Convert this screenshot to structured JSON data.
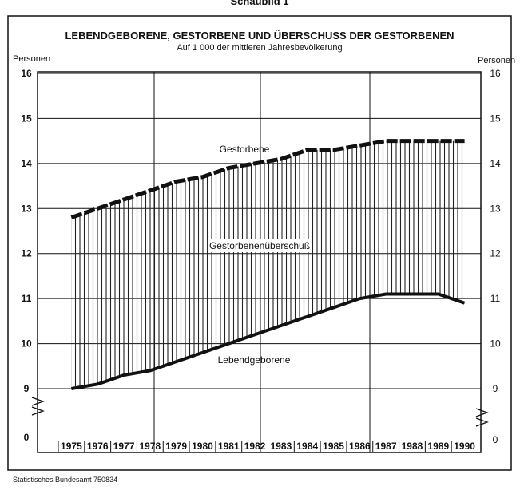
{
  "chart_data": {
    "type": "area-between",
    "header": "Schaubild 1",
    "title": "LEBENDGEBORENE, GESTORBENE UND ÜBERSCHUSS DER GESTORBENEN",
    "subtitle": "Auf 1 000 der mittleren Jahresbevölkerung",
    "ylabel_left": "Personen",
    "ylabel_right": "Personen",
    "categories": [
      "1975",
      "1976",
      "1977",
      "1978",
      "1979",
      "1980",
      "1981",
      "1982",
      "1983",
      "1984",
      "1985",
      "1986",
      "1987",
      "1988",
      "1989",
      "1990"
    ],
    "series": [
      {
        "name": "Gestorbene",
        "color": "#111111",
        "values": [
          12.8,
          13.0,
          13.2,
          13.4,
          13.6,
          13.7,
          13.9,
          14.0,
          14.1,
          14.3,
          14.3,
          14.4,
          14.5,
          14.5,
          14.5,
          14.5
        ]
      },
      {
        "name": "Lebendgeborene",
        "color": "#111111",
        "values": [
          9.0,
          9.1,
          9.3,
          9.4,
          9.6,
          9.8,
          10.0,
          10.2,
          10.4,
          10.6,
          10.8,
          11.0,
          11.1,
          11.1,
          11.1,
          10.9
        ]
      }
    ],
    "area_label": "Gestorbenenüberschuß",
    "ylim": [
      9,
      16
    ],
    "yticks": [
      9,
      10,
      11,
      12,
      13,
      14,
      15,
      16
    ],
    "ybreak_tick": 0,
    "grid": true,
    "source": "Statistisches Bundesamt 750834"
  }
}
